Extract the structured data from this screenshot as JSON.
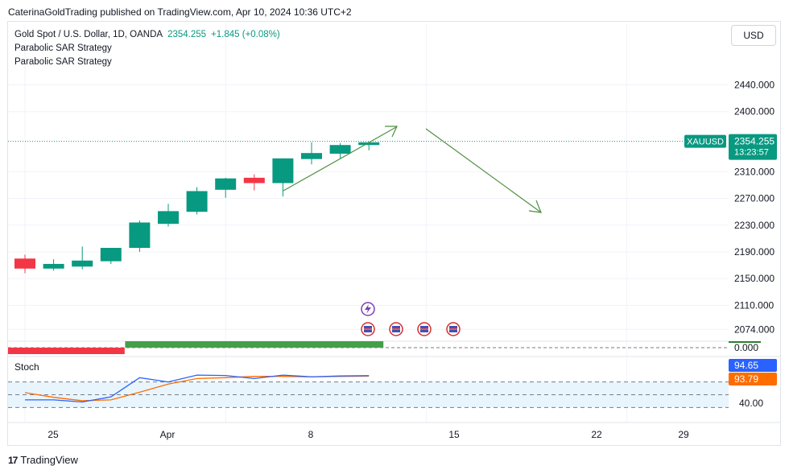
{
  "publisher_line": "CaterinaGoldTrading published on TradingView.com, Apr 10, 2024 10:36 UTC+2",
  "legend": {
    "symbol": "Gold Spot / U.S. Dollar, 1D, OANDA",
    "price": "2354.255",
    "change": "+1.845 (+0.08%)",
    "strategy_1": "Parabolic SAR Strategy",
    "strategy_2": "Parabolic SAR Strategy"
  },
  "currency_button": "USD",
  "stoch_label": "Stoch",
  "footer_brand": "TradingView",
  "colors": {
    "up": "#089981",
    "down": "#f23645",
    "stoch_k": "#2962ff",
    "stoch_d": "#ff6d00",
    "arrow": "#4e8f3f",
    "band": "#e3f2fd"
  },
  "price_badge": {
    "symbol": "XAUUSD",
    "price": "2354.255",
    "countdown": "13:23:57"
  },
  "chart_data": {
    "type": "candlestick",
    "y_ticks": [
      "2440.000",
      "2400.000",
      "2310.000",
      "2270.000",
      "2230.000",
      "2190.000",
      "2150.000",
      "2110.000",
      "2074.000"
    ],
    "x_ticks": [
      {
        "label": "25",
        "day": 0
      },
      {
        "label": "Apr",
        "day": 7
      },
      {
        "label": "8",
        "day": 14
      },
      {
        "label": "15",
        "day": 21
      },
      {
        "label": "22",
        "day": 28
      },
      {
        "label": "29",
        "day": 32
      }
    ],
    "candles": [
      {
        "day": 0,
        "o": 2180,
        "h": 2186,
        "l": 2158,
        "c": 2165
      },
      {
        "day": 1,
        "o": 2165,
        "h": 2179,
        "l": 2162,
        "c": 2172
      },
      {
        "day": 2,
        "o": 2168,
        "h": 2198,
        "l": 2164,
        "c": 2177
      },
      {
        "day": 3,
        "o": 2176,
        "h": 2196,
        "l": 2172,
        "c": 2196
      },
      {
        "day": 4,
        "o": 2196,
        "h": 2237,
        "l": 2190,
        "c": 2234
      },
      {
        "day": 5,
        "o": 2232,
        "h": 2262,
        "l": 2228,
        "c": 2251
      },
      {
        "day": 6,
        "o": 2250,
        "h": 2287,
        "l": 2246,
        "c": 2281
      },
      {
        "day": 7,
        "o": 2283,
        "h": 2301,
        "l": 2271,
        "c": 2300
      },
      {
        "day": 8,
        "o": 2301,
        "h": 2306,
        "l": 2282,
        "c": 2293
      },
      {
        "day": 9,
        "o": 2293,
        "h": 2330,
        "l": 2273,
        "c": 2330
      },
      {
        "day": 10,
        "o": 2329,
        "h": 2354,
        "l": 2321,
        "c": 2338
      },
      {
        "day": 11,
        "o": 2337,
        "h": 2353,
        "l": 2330,
        "c": 2350
      },
      {
        "day": 12,
        "o": 2350,
        "h": 2355,
        "l": 2342,
        "c": 2354
      }
    ],
    "last_price": 2354.255,
    "strategy_pane": {
      "zero_label": "0.000",
      "red_days": [
        0,
        3
      ],
      "green_days": [
        4,
        12
      ]
    },
    "stoch": {
      "k_value": "94.65",
      "d_value": "93.79",
      "level_label": "40.00",
      "k": [
        {
          "day": 0,
          "v": 38
        },
        {
          "day": 1,
          "v": 38
        },
        {
          "day": 2,
          "v": 33
        },
        {
          "day": 3,
          "v": 45
        },
        {
          "day": 4,
          "v": 90
        },
        {
          "day": 5,
          "v": 80
        },
        {
          "day": 6,
          "v": 96
        },
        {
          "day": 7,
          "v": 95
        },
        {
          "day": 8,
          "v": 88
        },
        {
          "day": 9,
          "v": 96
        },
        {
          "day": 10,
          "v": 92
        },
        {
          "day": 11,
          "v": 94
        },
        {
          "day": 12,
          "v": 94.65
        }
      ],
      "d": [
        {
          "day": 0,
          "v": 55
        },
        {
          "day": 1,
          "v": 44
        },
        {
          "day": 2,
          "v": 36
        },
        {
          "day": 3,
          "v": 38
        },
        {
          "day": 4,
          "v": 56
        },
        {
          "day": 5,
          "v": 75
        },
        {
          "day": 6,
          "v": 88
        },
        {
          "day": 7,
          "v": 90
        },
        {
          "day": 8,
          "v": 93
        },
        {
          "day": 9,
          "v": 93
        },
        {
          "day": 10,
          "v": 92
        },
        {
          "day": 11,
          "v": 93
        },
        {
          "day": 12,
          "v": 93.79
        }
      ]
    }
  }
}
